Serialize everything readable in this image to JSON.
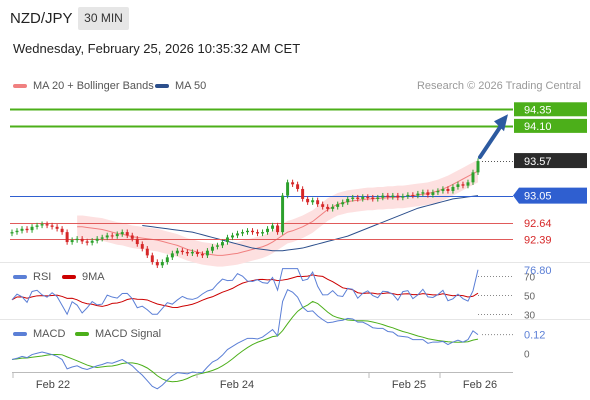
{
  "header": {
    "symbol": "NZD/JPY",
    "timeframe": "30 MIN",
    "datetime": "Wednesday, February 25, 2026 10:35:32 AM CET",
    "credit": "Research © 2026 Trading Central"
  },
  "legend": {
    "ma20": "MA 20 + Bollinger Bands",
    "ma50": "MA 50",
    "rsi": "RSI",
    "rsi_ma": "9MA",
    "macd": "MACD",
    "macd_signal": "MACD Signal"
  },
  "colors": {
    "ma20": "#f08080",
    "ma50": "#2c4f8c",
    "bollinger_fill": "#fde0e0",
    "candle_up": "#2ca02c",
    "candle_down": "#d62728",
    "resistance": "#4caf1a",
    "support_line": "#2f5fd0",
    "pivot_line": "#e05a5a",
    "arrow": "#2c5aa0",
    "rsi": "#5b7fd6",
    "rsi_ma": "#cc0000",
    "macd": "#5b7fd6",
    "macd_signal": "#4caf1a"
  },
  "chart_data": [
    {
      "type": "candlestick",
      "panel": "price",
      "ylim": [
        92.05,
        94.55
      ],
      "x_ticks": [
        "Feb 22",
        "Feb 24",
        "Feb 25",
        "Feb 26"
      ],
      "levels": [
        {
          "value": 94.35,
          "label": "94.35",
          "style": "resistance"
        },
        {
          "value": 94.1,
          "label": "94.10",
          "style": "resistance"
        },
        {
          "value": 93.57,
          "label": "93.57",
          "style": "last"
        },
        {
          "value": 93.05,
          "label": "93.05",
          "style": "pivot"
        },
        {
          "value": 92.64,
          "label": "92.64",
          "style": "support"
        },
        {
          "value": 92.39,
          "label": "92.39",
          "style": "support"
        }
      ],
      "close": [
        92.5,
        92.52,
        92.55,
        92.53,
        92.58,
        92.6,
        92.62,
        92.6,
        92.58,
        92.55,
        92.5,
        92.35,
        92.38,
        92.4,
        92.36,
        92.34,
        92.37,
        92.4,
        92.42,
        92.45,
        92.44,
        92.47,
        92.5,
        92.45,
        92.4,
        92.32,
        92.25,
        92.15,
        92.05,
        92.0,
        92.05,
        92.12,
        92.18,
        92.22,
        92.2,
        92.18,
        92.2,
        92.17,
        92.15,
        92.22,
        92.28,
        92.3,
        92.35,
        92.42,
        92.45,
        92.48,
        92.5,
        92.52,
        92.5,
        92.48,
        92.5,
        92.55,
        92.6,
        92.5,
        93.05,
        93.25,
        93.22,
        93.15,
        93.0,
        92.95,
        92.98,
        92.92,
        92.88,
        92.85,
        92.88,
        92.92,
        92.95,
        93.0,
        93.02,
        93.0,
        93.03,
        93.02,
        93.0,
        93.02,
        93.05,
        93.03,
        93.05,
        93.02,
        93.04,
        93.06,
        93.05,
        93.08,
        93.1,
        93.06,
        93.1,
        93.12,
        93.15,
        93.12,
        93.18,
        93.22,
        93.2,
        93.25,
        93.4,
        93.57
      ],
      "ma20": [
        92.58,
        92.58,
        92.57,
        92.56,
        92.55,
        92.54,
        92.52,
        92.5,
        92.48,
        92.47,
        92.45,
        92.43,
        92.42,
        92.41,
        92.4,
        92.39,
        92.38,
        92.36,
        92.34,
        92.32,
        92.3,
        92.27,
        92.24,
        92.22,
        92.2,
        92.18,
        92.17,
        92.16,
        92.15,
        92.15,
        92.16,
        92.17,
        92.18,
        92.2,
        92.22,
        92.24,
        92.26,
        92.28,
        92.31,
        92.35,
        92.4,
        92.45,
        92.5,
        92.52,
        92.55,
        92.58,
        92.62,
        92.66,
        92.72,
        92.78,
        92.84,
        92.88,
        92.92,
        92.94,
        92.96,
        92.97,
        92.98,
        92.99,
        93.0,
        93.0,
        93.01,
        93.01,
        93.02,
        93.02,
        93.03,
        93.03,
        93.04,
        93.05,
        93.06,
        93.07,
        93.08,
        93.1,
        93.12,
        93.15,
        93.18,
        93.22,
        93.26,
        93.3,
        93.34,
        93.38,
        93.42
      ],
      "ma50": [
        92.6,
        92.59,
        92.58,
        92.57,
        92.56,
        92.55,
        92.54,
        92.53,
        92.52,
        92.51,
        92.5,
        92.48,
        92.46,
        92.44,
        92.42,
        92.4,
        92.38,
        92.36,
        92.34,
        92.32,
        92.3,
        92.28,
        92.26,
        92.25,
        92.24,
        92.23,
        92.22,
        92.22,
        92.22,
        92.23,
        92.24,
        92.25,
        92.26,
        92.28,
        92.3,
        92.32,
        92.34,
        92.36,
        92.38,
        92.4,
        92.42,
        92.44,
        92.47,
        92.5,
        92.53,
        92.56,
        92.59,
        92.62,
        92.65,
        92.68,
        92.71,
        92.74,
        92.77,
        92.8,
        92.83,
        92.86,
        92.88,
        92.9,
        92.92,
        92.94,
        92.96,
        92.98,
        93.0,
        93.01,
        93.02,
        93.03,
        93.04,
        93.05
      ]
    },
    {
      "type": "line",
      "panel": "rsi",
      "ylim": [
        25,
        85
      ],
      "levels": [
        {
          "value": 70,
          "label": "70"
        },
        {
          "value": 50,
          "label": "50"
        },
        {
          "value": 30,
          "label": "30"
        }
      ],
      "last_value": 76.8,
      "last_label": "76.80"
    },
    {
      "type": "line",
      "panel": "macd",
      "ylim": [
        -0.12,
        0.22
      ],
      "levels": [
        {
          "value": 0,
          "label": "0"
        }
      ],
      "last_value": 0.12,
      "last_label": "0.12"
    }
  ]
}
